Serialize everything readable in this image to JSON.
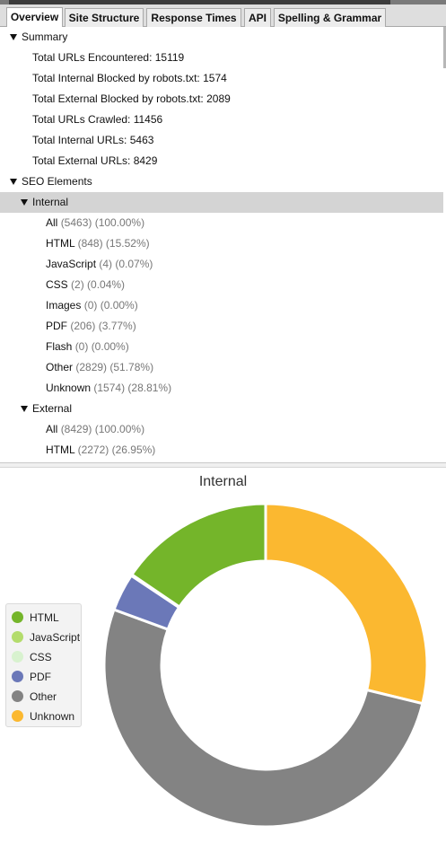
{
  "tabs": [
    {
      "label": "Overview",
      "active": true
    },
    {
      "label": "Site Structure",
      "active": false
    },
    {
      "label": "Response Times",
      "active": false
    },
    {
      "label": "API",
      "active": false
    },
    {
      "label": "Spelling & Grammar",
      "active": false
    }
  ],
  "tree": {
    "summary": {
      "label": "Summary",
      "items": [
        "Total URLs Encountered: 15119",
        "Total Internal Blocked by robots.txt: 1574",
        "Total External Blocked by robots.txt: 2089",
        "Total URLs Crawled: 11456",
        "Total Internal URLs: 5463",
        "Total External URLs: 8429"
      ]
    },
    "seo_elements": {
      "label": "SEO Elements",
      "internal": {
        "label": "Internal",
        "items": [
          {
            "name": "All",
            "count": "(5463) (100.00%)"
          },
          {
            "name": "HTML",
            "count": "(848) (15.52%)"
          },
          {
            "name": "JavaScript",
            "count": "(4) (0.07%)"
          },
          {
            "name": "CSS",
            "count": "(2) (0.04%)"
          },
          {
            "name": "Images",
            "count": "(0) (0.00%)"
          },
          {
            "name": "PDF",
            "count": "(206) (3.77%)"
          },
          {
            "name": "Flash",
            "count": "(0) (0.00%)"
          },
          {
            "name": "Other",
            "count": "(2829) (51.78%)"
          },
          {
            "name": "Unknown",
            "count": "(1574) (28.81%)"
          }
        ]
      },
      "external": {
        "label": "External",
        "items": [
          {
            "name": "All",
            "count": "(8429) (100.00%)"
          },
          {
            "name": "HTML",
            "count": "(2272) (26.95%)"
          }
        ]
      }
    }
  },
  "chart_data": {
    "type": "pie",
    "title": "Internal",
    "donut": true,
    "legend_position": "left",
    "series": [
      {
        "name": "HTML",
        "value": 848,
        "color": "#74b52a"
      },
      {
        "name": "JavaScript",
        "value": 4,
        "color": "#b3dc6c"
      },
      {
        "name": "CSS",
        "value": 2,
        "color": "#d8f2cf"
      },
      {
        "name": "PDF",
        "value": 206,
        "color": "#6b78b8"
      },
      {
        "name": "Other",
        "value": 2829,
        "color": "#838383"
      },
      {
        "name": "Unknown",
        "value": 1574,
        "color": "#fbb830"
      }
    ]
  }
}
